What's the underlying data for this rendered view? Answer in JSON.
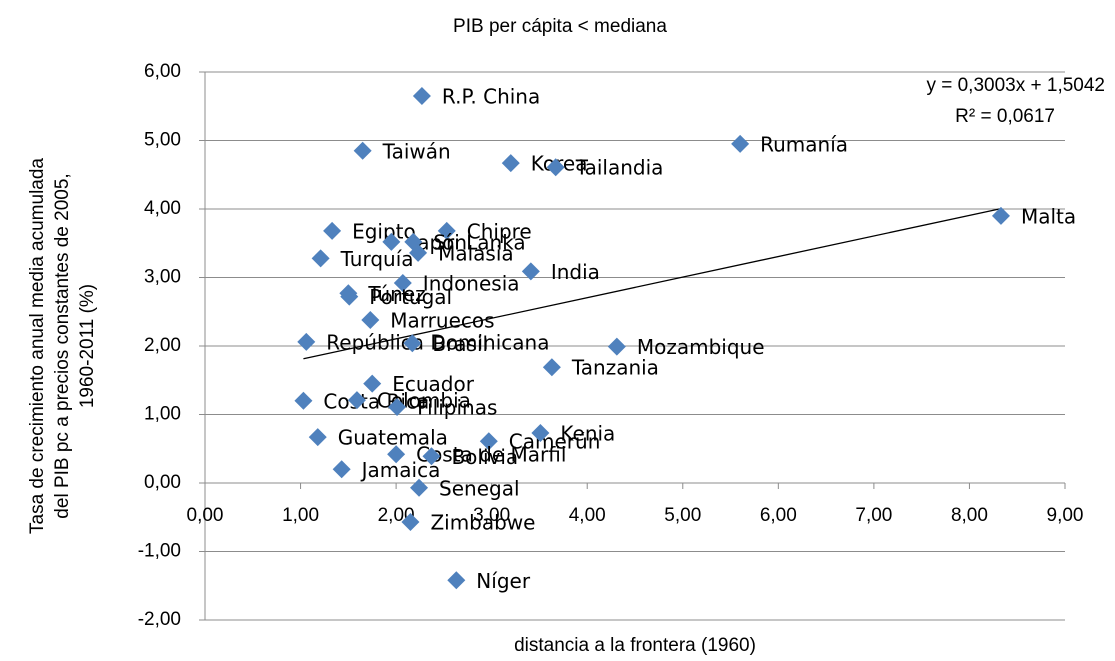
{
  "chart_data": {
    "type": "scatter",
    "title": "PIB per cápita < mediana",
    "xlabel": "distancia a la frontera (1960)",
    "ylabel": [
      "Tasa de crecimiento anual media acumulada",
      "del PIB pc a precios constantes de 2005,",
      "1960-2011 (%)"
    ],
    "color": "#4f81bd",
    "labels": [
      "R.P. China",
      "Taiwán",
      "Korea",
      "Tailandia",
      "Rumanía",
      "Malta",
      "Egipto",
      "Chipre",
      "Japón",
      "Sri Lanka",
      "Turquía",
      "Malasia",
      "India",
      "Indonesia",
      "Túnez",
      "Portugal",
      "República Dominicana",
      "Marruecos",
      "Brasil",
      "Mozambique",
      "Tanzania",
      "Ecuador",
      "Costa Rica",
      "Colombia",
      "Filipinas",
      "Guatemala",
      "Camerún",
      "Kenia",
      "Costa de Marfil",
      "Bolivia",
      "Jamaica",
      "Senegal",
      "Zimbabwe",
      "Níger"
    ],
    "x": [
      2.27,
      1.65,
      3.2,
      3.67,
      5.6,
      8.33,
      1.33,
      2.53,
      1.95,
      2.18,
      1.21,
      2.23,
      3.41,
      2.07,
      1.5,
      1.51,
      1.06,
      1.73,
      2.17,
      4.31,
      3.63,
      1.75,
      1.03,
      1.59,
      2.01,
      1.18,
      2.97,
      3.51,
      2.0,
      2.37,
      1.43,
      2.24,
      2.15,
      2.63
    ],
    "y": [
      5.65,
      4.85,
      4.67,
      4.61,
      4.95,
      3.9,
      3.68,
      3.68,
      3.52,
      3.52,
      3.28,
      3.36,
      3.09,
      2.92,
      2.77,
      2.72,
      2.06,
      2.38,
      2.04,
      1.99,
      1.69,
      1.45,
      1.2,
      1.21,
      1.11,
      0.67,
      0.61,
      0.73,
      0.42,
      0.39,
      0.2,
      -0.07,
      -0.57,
      -1.42
    ],
    "trendline": {
      "slope": 0.3003,
      "intercept": 1.5042,
      "equation": "y = 0,3003x + 1,5042",
      "r2": "R² = 0,0617"
    },
    "xlim": [
      0,
      9
    ],
    "ylim": [
      -2,
      6
    ],
    "xticks": [
      {
        "value": 0,
        "label": "0,00"
      },
      {
        "value": 1,
        "label": "1,00"
      },
      {
        "value": 2,
        "label": "2,00"
      },
      {
        "value": 3,
        "label": "3,00"
      },
      {
        "value": 4,
        "label": "4,00"
      },
      {
        "value": 5,
        "label": "5,00"
      },
      {
        "value": 6,
        "label": "6,00"
      },
      {
        "value": 7,
        "label": "7,00"
      },
      {
        "value": 8,
        "label": "8,00"
      },
      {
        "value": 9,
        "label": "9,00"
      }
    ],
    "yticks": [
      {
        "value": -2,
        "label": "-2,00"
      },
      {
        "value": -1,
        "label": "-1,00"
      },
      {
        "value": 0,
        "label": "0,00"
      },
      {
        "value": 1,
        "label": "1,00"
      },
      {
        "value": 2,
        "label": "2,00"
      },
      {
        "value": 3,
        "label": "3,00"
      },
      {
        "value": 4,
        "label": "4,00"
      },
      {
        "value": 5,
        "label": "5,00"
      },
      {
        "value": 6,
        "label": "6,00"
      }
    ],
    "grid": true
  }
}
